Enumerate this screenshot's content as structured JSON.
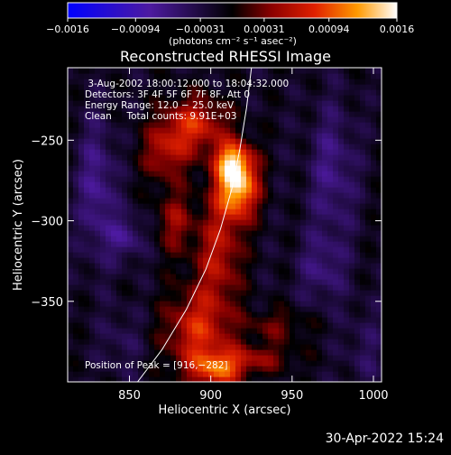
{
  "chart_data": {
    "type": "heatmap",
    "title": "Reconstructed RHESSI Image",
    "xlabel": "Heliocentric X (arcsec)",
    "ylabel": "Heliocentric Y (arcsec)",
    "xlim": [
      812,
      1005
    ],
    "ylim": [
      -400,
      -205
    ],
    "x_ticks": [
      850,
      900,
      950,
      1000
    ],
    "x_tick_labels": [
      "850",
      "900",
      "950",
      "1000"
    ],
    "y_ticks": [
      -250,
      -300,
      -350
    ],
    "y_tick_labels": [
      "−250",
      "−300",
      "−350"
    ],
    "colorbar": {
      "range": [
        -0.0016,
        0.0016
      ],
      "ticks": [
        -0.0016,
        -0.00094,
        -0.00031,
        0.00031,
        0.00094,
        0.0016
      ],
      "tick_labels": [
        "−0.0016",
        "−0.00094",
        "−0.00031",
        "0.00031",
        "0.00094",
        "0.0016"
      ],
      "unit_label": "(photons cm⁻² s⁻¹ asec⁻²)"
    },
    "info_lines": [
      " 3-Aug-2002 18:00:12.000 to 18:04:32.000",
      "Detectors: 3F 4F 5F 6F 7F 8F, Att 0",
      "Energy Range: 12.0 − 25.0 keV",
      "Clean     Total counts: 9.91E+03"
    ],
    "peak_label": "Position of Peak = [916,−282]",
    "peak": [
      916,
      -282
    ],
    "limb": [
      [
        855,
        -400
      ],
      [
        870,
        -380
      ],
      [
        885,
        -355
      ],
      [
        897,
        -330
      ],
      [
        906,
        -305
      ],
      [
        913,
        -280
      ],
      [
        918,
        -255
      ],
      [
        922,
        -230
      ],
      [
        925,
        -205
      ]
    ],
    "sources": [
      {
        "x": 916,
        "y": -278,
        "sx": 9,
        "sy": 14,
        "amp": 1.0
      },
      {
        "x": 913,
        "y": -262,
        "sx": 8,
        "sy": 8,
        "amp": 0.55
      },
      {
        "x": 890,
        "y": -240,
        "sx": 14,
        "sy": 12,
        "amp": 0.55
      },
      {
        "x": 872,
        "y": -258,
        "sx": 10,
        "sy": 12,
        "amp": 0.4
      },
      {
        "x": 905,
        "y": -320,
        "sx": 10,
        "sy": 22,
        "amp": 0.45
      },
      {
        "x": 892,
        "y": -368,
        "sx": 14,
        "sy": 18,
        "amp": 0.55
      },
      {
        "x": 905,
        "y": -392,
        "sx": 12,
        "sy": 8,
        "amp": 0.6
      },
      {
        "x": 878,
        "y": -300,
        "sx": 8,
        "sy": 14,
        "amp": 0.35
      },
      {
        "x": 940,
        "y": -365,
        "sx": 14,
        "sy": 7,
        "amp": 0.25
      },
      {
        "x": 930,
        "y": -385,
        "sx": 16,
        "sy": 6,
        "amp": 0.3
      },
      {
        "x": 830,
        "y": -280,
        "sx": 8,
        "sy": 30,
        "amp": -0.35
      },
      {
        "x": 848,
        "y": -310,
        "sx": 8,
        "sy": 10,
        "amp": -0.3
      },
      {
        "x": 975,
        "y": -270,
        "sx": 10,
        "sy": 30,
        "amp": -0.3
      },
      {
        "x": 968,
        "y": -330,
        "sx": 10,
        "sy": 15,
        "amp": -0.25
      },
      {
        "x": 845,
        "y": -375,
        "sx": 9,
        "sy": 15,
        "amp": -0.15
      },
      {
        "x": 995,
        "y": -380,
        "sx": 10,
        "sy": 20,
        "amp": -0.15
      }
    ]
  },
  "footer_timestamp": "30-Apr-2022 15:24"
}
